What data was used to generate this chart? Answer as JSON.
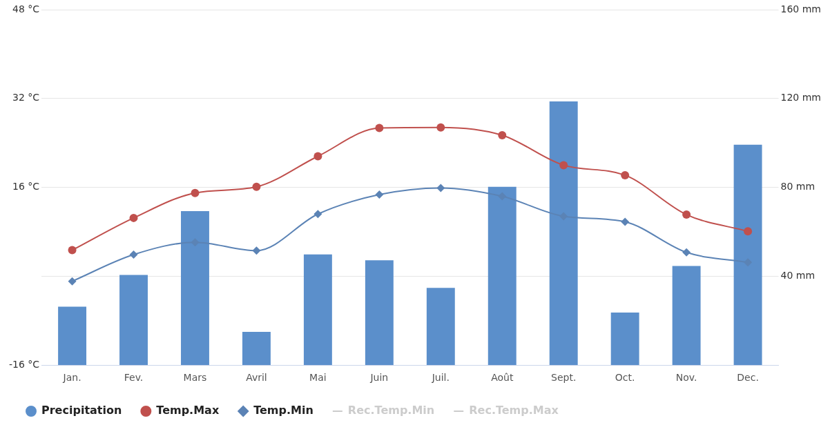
{
  "chart_data": {
    "type": "bar",
    "categories": [
      "Jan.",
      "Fev.",
      "Mars",
      "Avril",
      "Mai",
      "Juin",
      "Juil.",
      "Août",
      "Sept.",
      "Oct.",
      "Nov.",
      "Dec."
    ],
    "series": [
      {
        "name": "Precipitation",
        "axis": "y2",
        "color": "#5b8fcb",
        "values": [
          26.3,
          40.6,
          69.3,
          15,
          49.8,
          47.2,
          34.8,
          80.3,
          118.7,
          23.7,
          44.6,
          99.2
        ]
      },
      {
        "name": "Temp.Max",
        "type": "line",
        "color": "#c0504d",
        "marker": "circle",
        "values": [
          4.7,
          10.5,
          15,
          16.1,
          21.6,
          26.7,
          26.8,
          25.4,
          20,
          18.2,
          11.1,
          8.1
        ]
      },
      {
        "name": "Temp.Min",
        "type": "line",
        "color": "#5b83b5",
        "marker": "diamond",
        "values": [
          -0.9,
          3.9,
          6.1,
          4.6,
          11.2,
          14.7,
          15.9,
          14.4,
          10.8,
          9.8,
          4.3,
          2.5
        ]
      },
      {
        "name": "Rec.Temp.Min",
        "type": "line",
        "color": "#cccccc",
        "values": [
          null,
          null,
          null,
          null,
          null,
          null,
          null,
          null,
          null,
          null,
          null,
          null
        ]
      },
      {
        "name": "Rec.Temp.Max",
        "type": "line",
        "color": "#cccccc",
        "values": [
          null,
          null,
          null,
          null,
          null,
          null,
          null,
          null,
          null,
          null,
          null,
          null
        ]
      }
    ],
    "ylim": [
      -16,
      48
    ],
    "yticks": [
      {
        "value": -16,
        "label": "-16 °C"
      },
      {
        "value": 0,
        "label": null
      },
      {
        "value": 16,
        "label": "16 °C"
      },
      {
        "value": 32,
        "label": "32 °C"
      },
      {
        "value": 48,
        "label": "48 °C"
      }
    ],
    "y2lim": [
      0,
      160
    ],
    "y2ticks": [
      {
        "value": 0,
        "label": null
      },
      {
        "value": 40,
        "label": "40 mm"
      },
      {
        "value": 80,
        "label": "80 mm"
      },
      {
        "value": 120,
        "label": "120 mm"
      },
      {
        "value": 160,
        "label": "160 mm"
      }
    ],
    "grid": "y",
    "legend": "bottom"
  }
}
